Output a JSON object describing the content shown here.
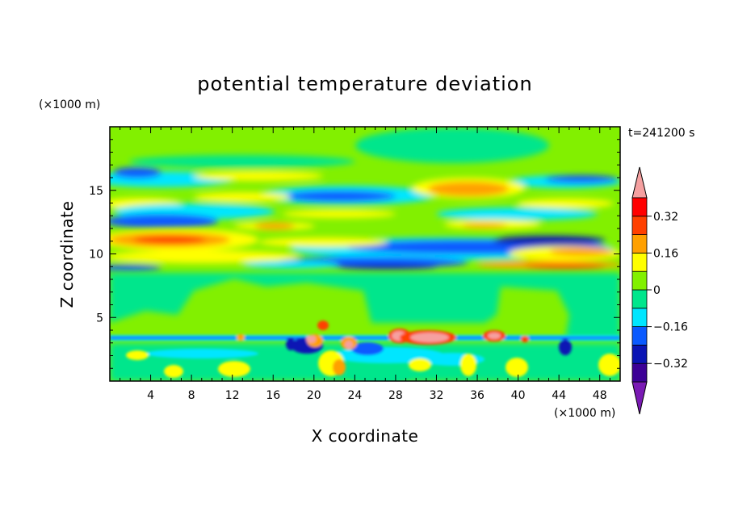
{
  "chart_data": {
    "type": "heatmap",
    "title": "potential temperature deviation",
    "time_label": "t=241200 s",
    "xlabel": "X coordinate",
    "ylabel": "Z coordinate",
    "x_unit": "(×1000 m)",
    "y_unit": "(×1000 m)",
    "xlim": [
      0,
      50
    ],
    "ylim": [
      0,
      20
    ],
    "x_ticks": [
      4,
      8,
      12,
      16,
      20,
      24,
      28,
      32,
      36,
      40,
      44,
      48
    ],
    "y_ticks": [
      5,
      10,
      15
    ],
    "colorbar": {
      "levels": [
        -0.4,
        -0.32,
        -0.24,
        -0.16,
        -0.08,
        0,
        0.08,
        0.16,
        0.24,
        0.32,
        0.4
      ],
      "labels": [
        "0.32",
        "0.16",
        "0",
        "−0.16",
        "−0.32"
      ],
      "label_values": [
        0.32,
        0.16,
        0,
        -0.16,
        -0.32
      ],
      "colors": [
        "#7a1ab4",
        "#3c0096",
        "#0a14b4",
        "#0a5aff",
        "#00e6ff",
        "#00e68c",
        "#82f000",
        "#ffff00",
        "#ffa000",
        "#ff4000",
        "#ff0000",
        "#f5a0a0"
      ]
    },
    "features": [
      {
        "z": 15.6,
        "x": [
          0,
          50
        ],
        "sign": "mixed",
        "note": "upper layer bands"
      },
      {
        "z": 11.3,
        "x": [
          0,
          50
        ],
        "sign": "mixed",
        "note": "tropopause bands"
      },
      {
        "z": 3.5,
        "x": [
          0,
          50
        ],
        "sign": "mixed",
        "note": "low-level perturbations"
      }
    ]
  }
}
